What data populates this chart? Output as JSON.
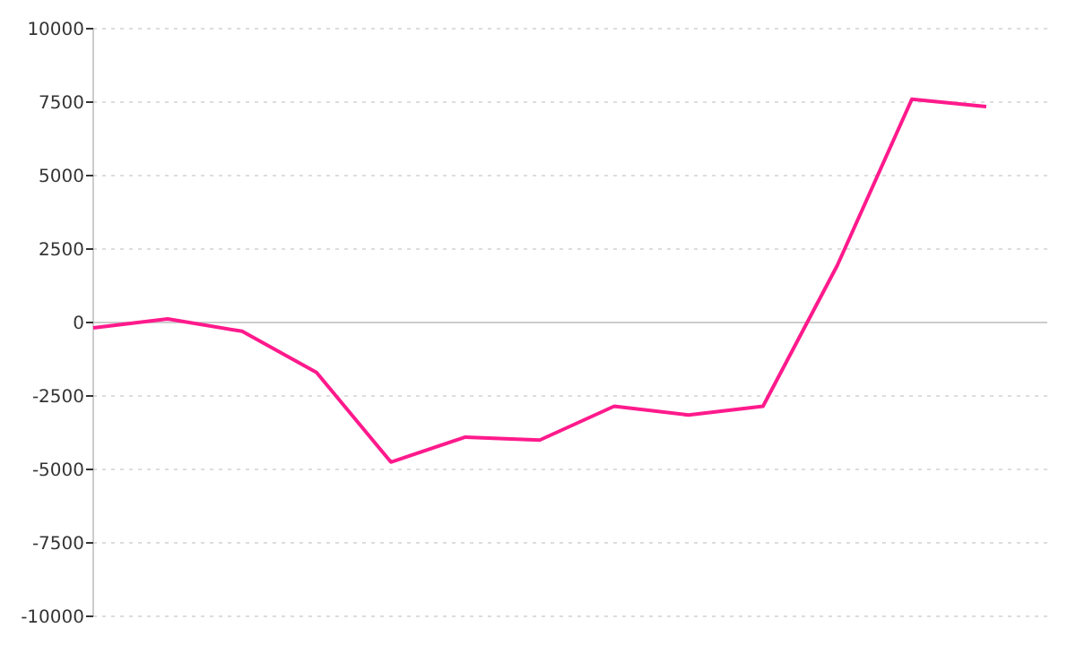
{
  "chart_data": {
    "type": "line",
    "categories": [
      null,
      null,
      null,
      null,
      null,
      null,
      null,
      null,
      null,
      null,
      null,
      null,
      null
    ],
    "series": [
      {
        "color": "#ff1a8c",
        "values": [
          -180,
          120,
          -300,
          -1700,
          -4750,
          -3900,
          -4000,
          -2850,
          -3150,
          -2850,
          1950,
          7600,
          7350
        ]
      }
    ],
    "ylim": [
      -10000,
      10000
    ],
    "yticks": [
      -10000,
      -7500,
      -5000,
      -2500,
      0,
      2500,
      5000,
      7500,
      10000
    ],
    "grid": "y",
    "marker": "none",
    "line_style": "solid"
  }
}
